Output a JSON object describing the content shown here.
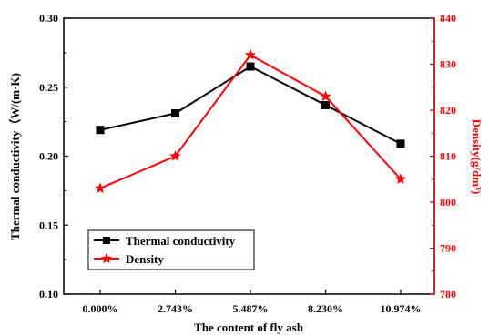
{
  "chart_data": {
    "type": "line",
    "categories": [
      "0.000%",
      "2.743%",
      "5.487%",
      "8.230%",
      "10.974%"
    ],
    "xlabel": "The content of fly ash",
    "y_left": {
      "label": "Thermal conductivity（W/(m·K)",
      "ylim": [
        0.1,
        0.3
      ],
      "ticks": [
        "0.10",
        "0.15",
        "0.20",
        "0.25",
        "0.30"
      ],
      "color": "#000000"
    },
    "y_right": {
      "label": "Density(g/dm³)",
      "ylim": [
        780,
        840
      ],
      "ticks": [
        "780",
        "790",
        "800",
        "810",
        "820",
        "830",
        "840"
      ],
      "color": "#ff0000"
    },
    "series": [
      {
        "name": "Thermal conductivity",
        "axis": "left",
        "marker": "square",
        "color": "#000000",
        "values": [
          0.219,
          0.231,
          0.265,
          0.237,
          0.209
        ]
      },
      {
        "name": "Density",
        "axis": "right",
        "marker": "star",
        "color": "#ff0000",
        "values": [
          803,
          810,
          832,
          823,
          805
        ]
      }
    ],
    "legend_position": "bottom-left",
    "grid": false
  }
}
